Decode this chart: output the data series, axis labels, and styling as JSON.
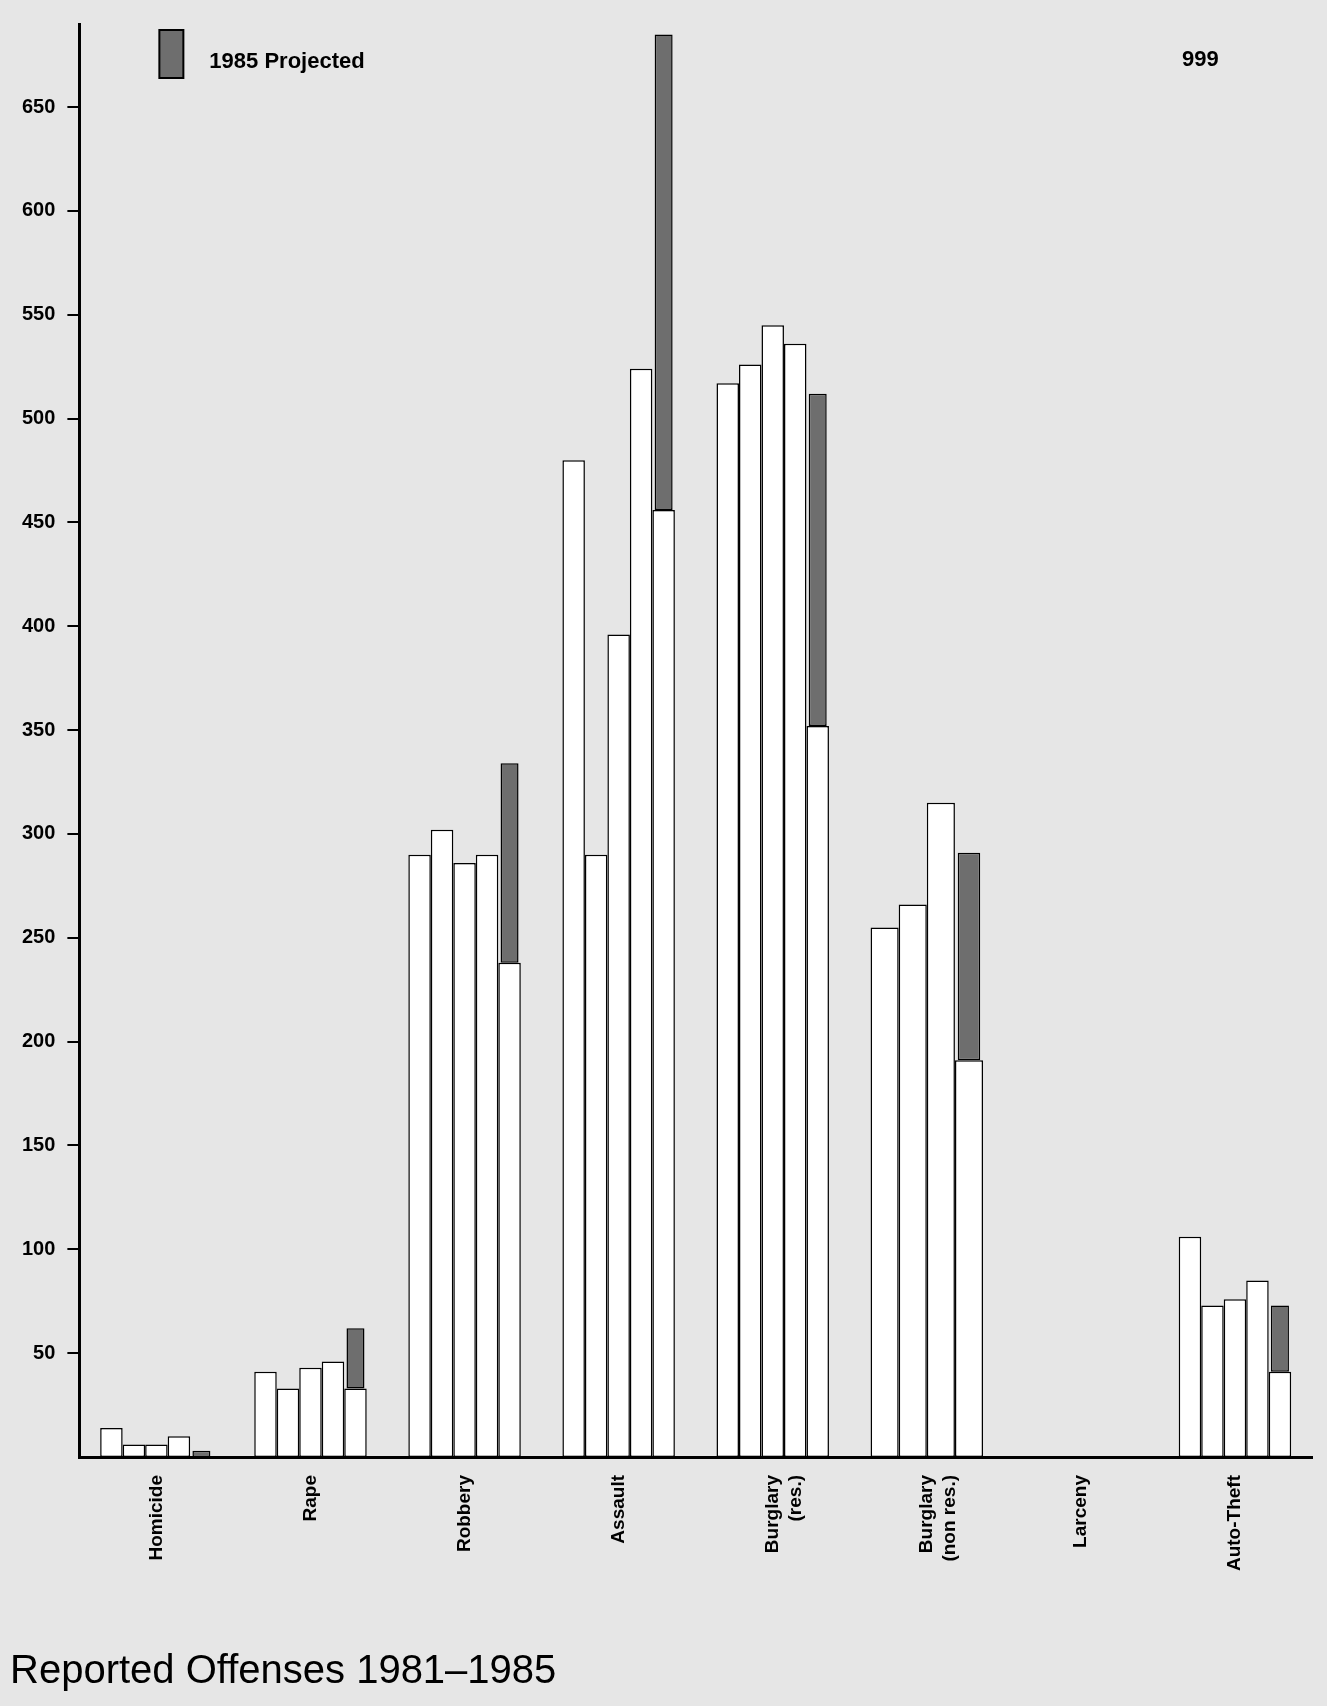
{
  "chart_data": {
    "type": "bar",
    "title": "Reported Offenses 1981–1985",
    "categories": [
      "Homicide",
      "Rape",
      "Robbery",
      "Assault",
      "Burglary (res.)",
      "Burglary (non res.)",
      "Larceny",
      "Auto-Theft"
    ],
    "series": [
      {
        "color": "#ffffff",
        "values": [
          14,
          41,
          290,
          480,
          517,
          null,
          null,
          106
        ]
      },
      {
        "color": "#ffffff",
        "values": [
          6,
          33,
          302,
          290,
          526,
          255,
          null,
          73
        ]
      },
      {
        "color": "#ffffff",
        "values": [
          6,
          43,
          286,
          396,
          545,
          266,
          null,
          76
        ]
      },
      {
        "color": "#ffffff",
        "values": [
          10,
          46,
          290,
          524,
          536,
          315,
          null,
          85
        ]
      },
      {
        "color": "#ffffff",
        "values": [
          null,
          33,
          238,
          456,
          352,
          191,
          null,
          41
        ]
      },
      {
        "name": "1985 Projected",
        "color": "#6e6e6e",
        "values": [
          3,
          29,
          96,
          229,
          160,
          100,
          null,
          32
        ],
        "base": [
          0,
          33,
          238,
          456,
          352,
          191,
          null,
          41
        ]
      }
    ],
    "ylim": [
      0,
      690
    ],
    "yticks": [
      50,
      100,
      150,
      200,
      250,
      300,
      350,
      400,
      450,
      500,
      550,
      600,
      650
    ],
    "grid": false,
    "legend": "top left",
    "annotations": [
      "999"
    ]
  }
}
